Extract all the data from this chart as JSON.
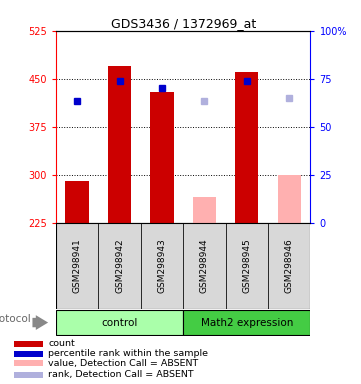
{
  "title": "GDS3436 / 1372969_at",
  "samples": [
    "GSM298941",
    "GSM298942",
    "GSM298943",
    "GSM298944",
    "GSM298945",
    "GSM298946"
  ],
  "bar_values": [
    290,
    470,
    430,
    null,
    460,
    null
  ],
  "bar_colors_present": "#cc0000",
  "bar_colors_absent": "#ffb0b0",
  "absent_bar_values": [
    null,
    null,
    null,
    265,
    null,
    300
  ],
  "dot_values_present": [
    415,
    447,
    435,
    null,
    446,
    null
  ],
  "dot_colors_present": "#0000cc",
  "dot_values_absent": [
    null,
    null,
    null,
    415,
    null,
    420
  ],
  "dot_colors_absent": "#b0b0dd",
  "ylim_left": [
    225,
    525
  ],
  "ylim_right": [
    0,
    100
  ],
  "yticks_left": [
    225,
    300,
    375,
    450,
    525
  ],
  "yticks_right": [
    0,
    25,
    50,
    75,
    100
  ],
  "yticklabels_right": [
    "0",
    "25",
    "50",
    "75",
    "100%"
  ],
  "bar_bottom": 225,
  "control_color": "#aaffaa",
  "math2_color": "#44cc44",
  "sample_box_color": "#d8d8d8",
  "legend_items": [
    {
      "label": "count",
      "color": "#cc0000"
    },
    {
      "label": "percentile rank within the sample",
      "color": "#0000cc"
    },
    {
      "label": "value, Detection Call = ABSENT",
      "color": "#ffb0b0"
    },
    {
      "label": "rank, Detection Call = ABSENT",
      "color": "#b0b0dd"
    }
  ],
  "protocol_label": "protocol",
  "bar_width": 0.55
}
